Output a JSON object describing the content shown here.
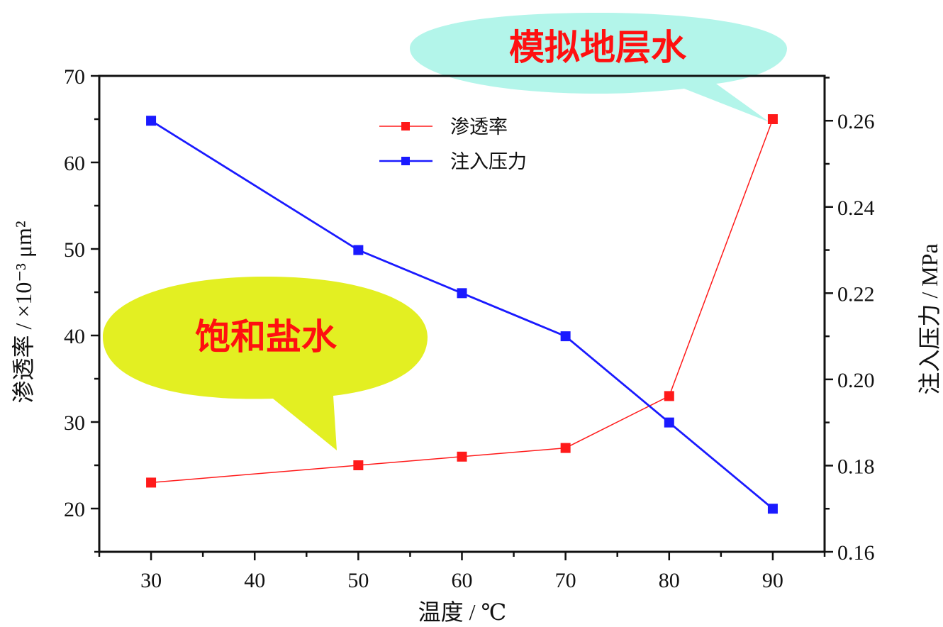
{
  "chart_data": {
    "type": "line",
    "x": [
      30,
      50,
      60,
      70,
      80,
      90
    ],
    "xlabel": "温度 / ℃",
    "xlim": [
      25,
      95
    ],
    "xticks": [
      30,
      40,
      50,
      60,
      70,
      80,
      90
    ],
    "ylabel": "渗透率 / ×10⁻³ μm²",
    "ylim": [
      15,
      70
    ],
    "yticks": [
      20,
      30,
      40,
      50,
      60,
      70
    ],
    "y2label": "注入压力 / MPa",
    "y2lim": [
      0.16,
      0.2704
    ],
    "y2ticks": [
      "0.16",
      "0.18",
      "0.20",
      "0.22",
      "0.24",
      "0.26"
    ],
    "grid": false,
    "legend_position": "top-center",
    "series": [
      {
        "name": "渗透率",
        "axis": "left",
        "color": "#ff1a1a",
        "marker": "square",
        "values": [
          23,
          25,
          26,
          27,
          33,
          65
        ]
      },
      {
        "name": "注入压力",
        "axis": "right",
        "color": "#1a1aff",
        "marker": "square",
        "values": [
          0.26,
          0.23,
          0.22,
          0.21,
          0.19,
          0.17
        ]
      }
    ],
    "annotations": [
      {
        "text": "模拟地层水",
        "color": "#b3f5ea"
      },
      {
        "text": "饱和盐水",
        "color": "#e3ef22"
      }
    ]
  }
}
